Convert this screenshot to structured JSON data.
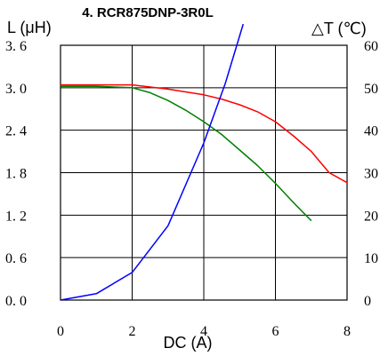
{
  "chart_data": {
    "type": "line",
    "title": "4. RCR875DNP-3R0L",
    "xlabel": "DC (A)",
    "ylabel_left": "L (μH)",
    "ylabel_right": "△T (℃)",
    "xlim": [
      0,
      8
    ],
    "ylim_left": [
      0,
      3.6
    ],
    "ylim_right": [
      0,
      60
    ],
    "x_ticks": [
      "0",
      "2",
      "4",
      "6",
      "8"
    ],
    "y_left_ticks": [
      "0.0",
      "0.6",
      "1.2",
      "1.8",
      "2.4",
      "3.0",
      "3.6"
    ],
    "y_right_ticks": [
      "0",
      "10",
      "20",
      "30",
      "40",
      "50",
      "60"
    ],
    "grid": true,
    "series": [
      {
        "axis": "left",
        "color": "#ff0000",
        "points": [
          [
            0,
            3.04
          ],
          [
            1,
            3.04
          ],
          [
            2,
            3.04
          ],
          [
            3,
            2.98
          ],
          [
            4,
            2.9
          ],
          [
            4.5,
            2.84
          ],
          [
            5,
            2.76
          ],
          [
            5.5,
            2.66
          ],
          [
            6,
            2.52
          ],
          [
            6.5,
            2.32
          ],
          [
            7,
            2.1
          ],
          [
            7.5,
            1.8
          ],
          [
            8,
            1.66
          ]
        ]
      },
      {
        "axis": "left",
        "color": "#008000",
        "points": [
          [
            0,
            3.02
          ],
          [
            1,
            3.02
          ],
          [
            2,
            3.0
          ],
          [
            2.5,
            2.93
          ],
          [
            3,
            2.82
          ],
          [
            3.5,
            2.68
          ],
          [
            4,
            2.52
          ],
          [
            4.5,
            2.34
          ],
          [
            5,
            2.12
          ],
          [
            5.5,
            1.9
          ],
          [
            6,
            1.65
          ],
          [
            6.5,
            1.38
          ],
          [
            7,
            1.12
          ]
        ]
      },
      {
        "axis": "right",
        "color": "#0000ff",
        "points": [
          [
            0,
            0
          ],
          [
            1,
            1.5
          ],
          [
            2,
            6.5
          ],
          [
            3,
            17.5
          ],
          [
            4,
            37
          ],
          [
            4.6,
            51
          ],
          [
            5.1,
            65
          ]
        ]
      }
    ]
  }
}
